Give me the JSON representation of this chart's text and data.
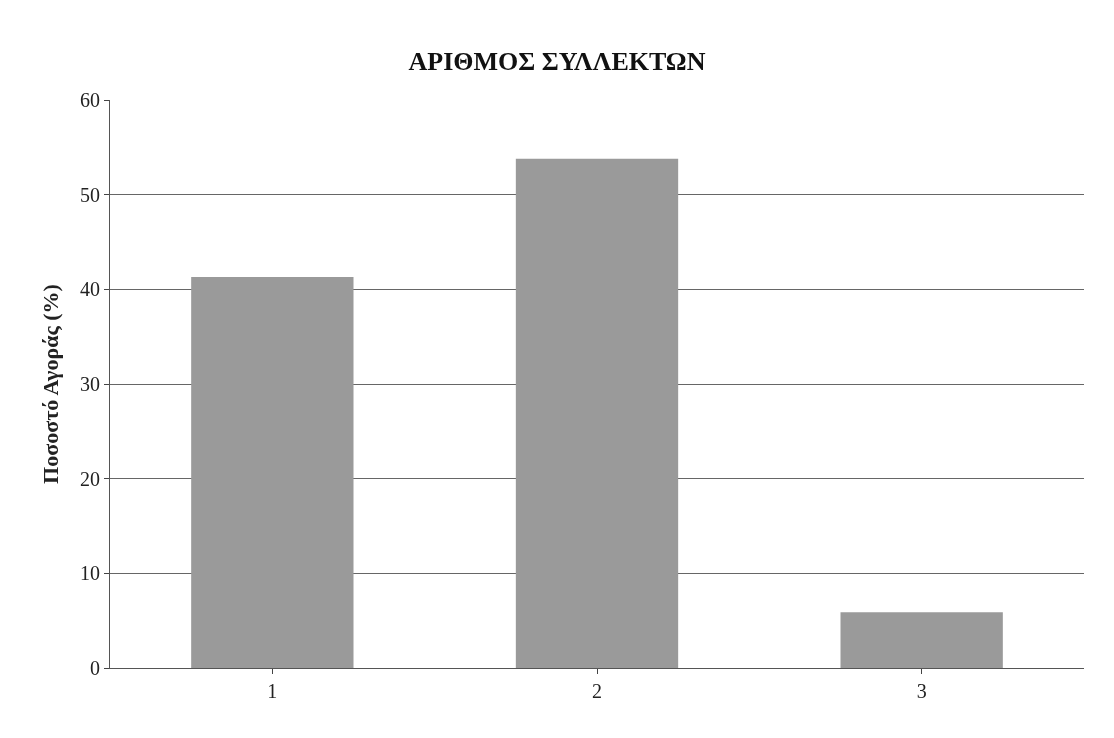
{
  "chart_data": {
    "type": "bar",
    "title": "ΑΡΙΘΜΟΣ ΣΥΛΛΕΚΤΩΝ",
    "ylabel": "Ποσοστό Αγοράς (%)",
    "categories": [
      "1",
      "2",
      "3"
    ],
    "values": [
      41.3,
      53.8,
      5.9
    ],
    "color": "#9a9a9a",
    "ylim": [
      0,
      60
    ],
    "yticks": [
      0,
      10,
      20,
      30,
      40,
      50,
      60
    ],
    "grid": "y",
    "legend": false
  }
}
